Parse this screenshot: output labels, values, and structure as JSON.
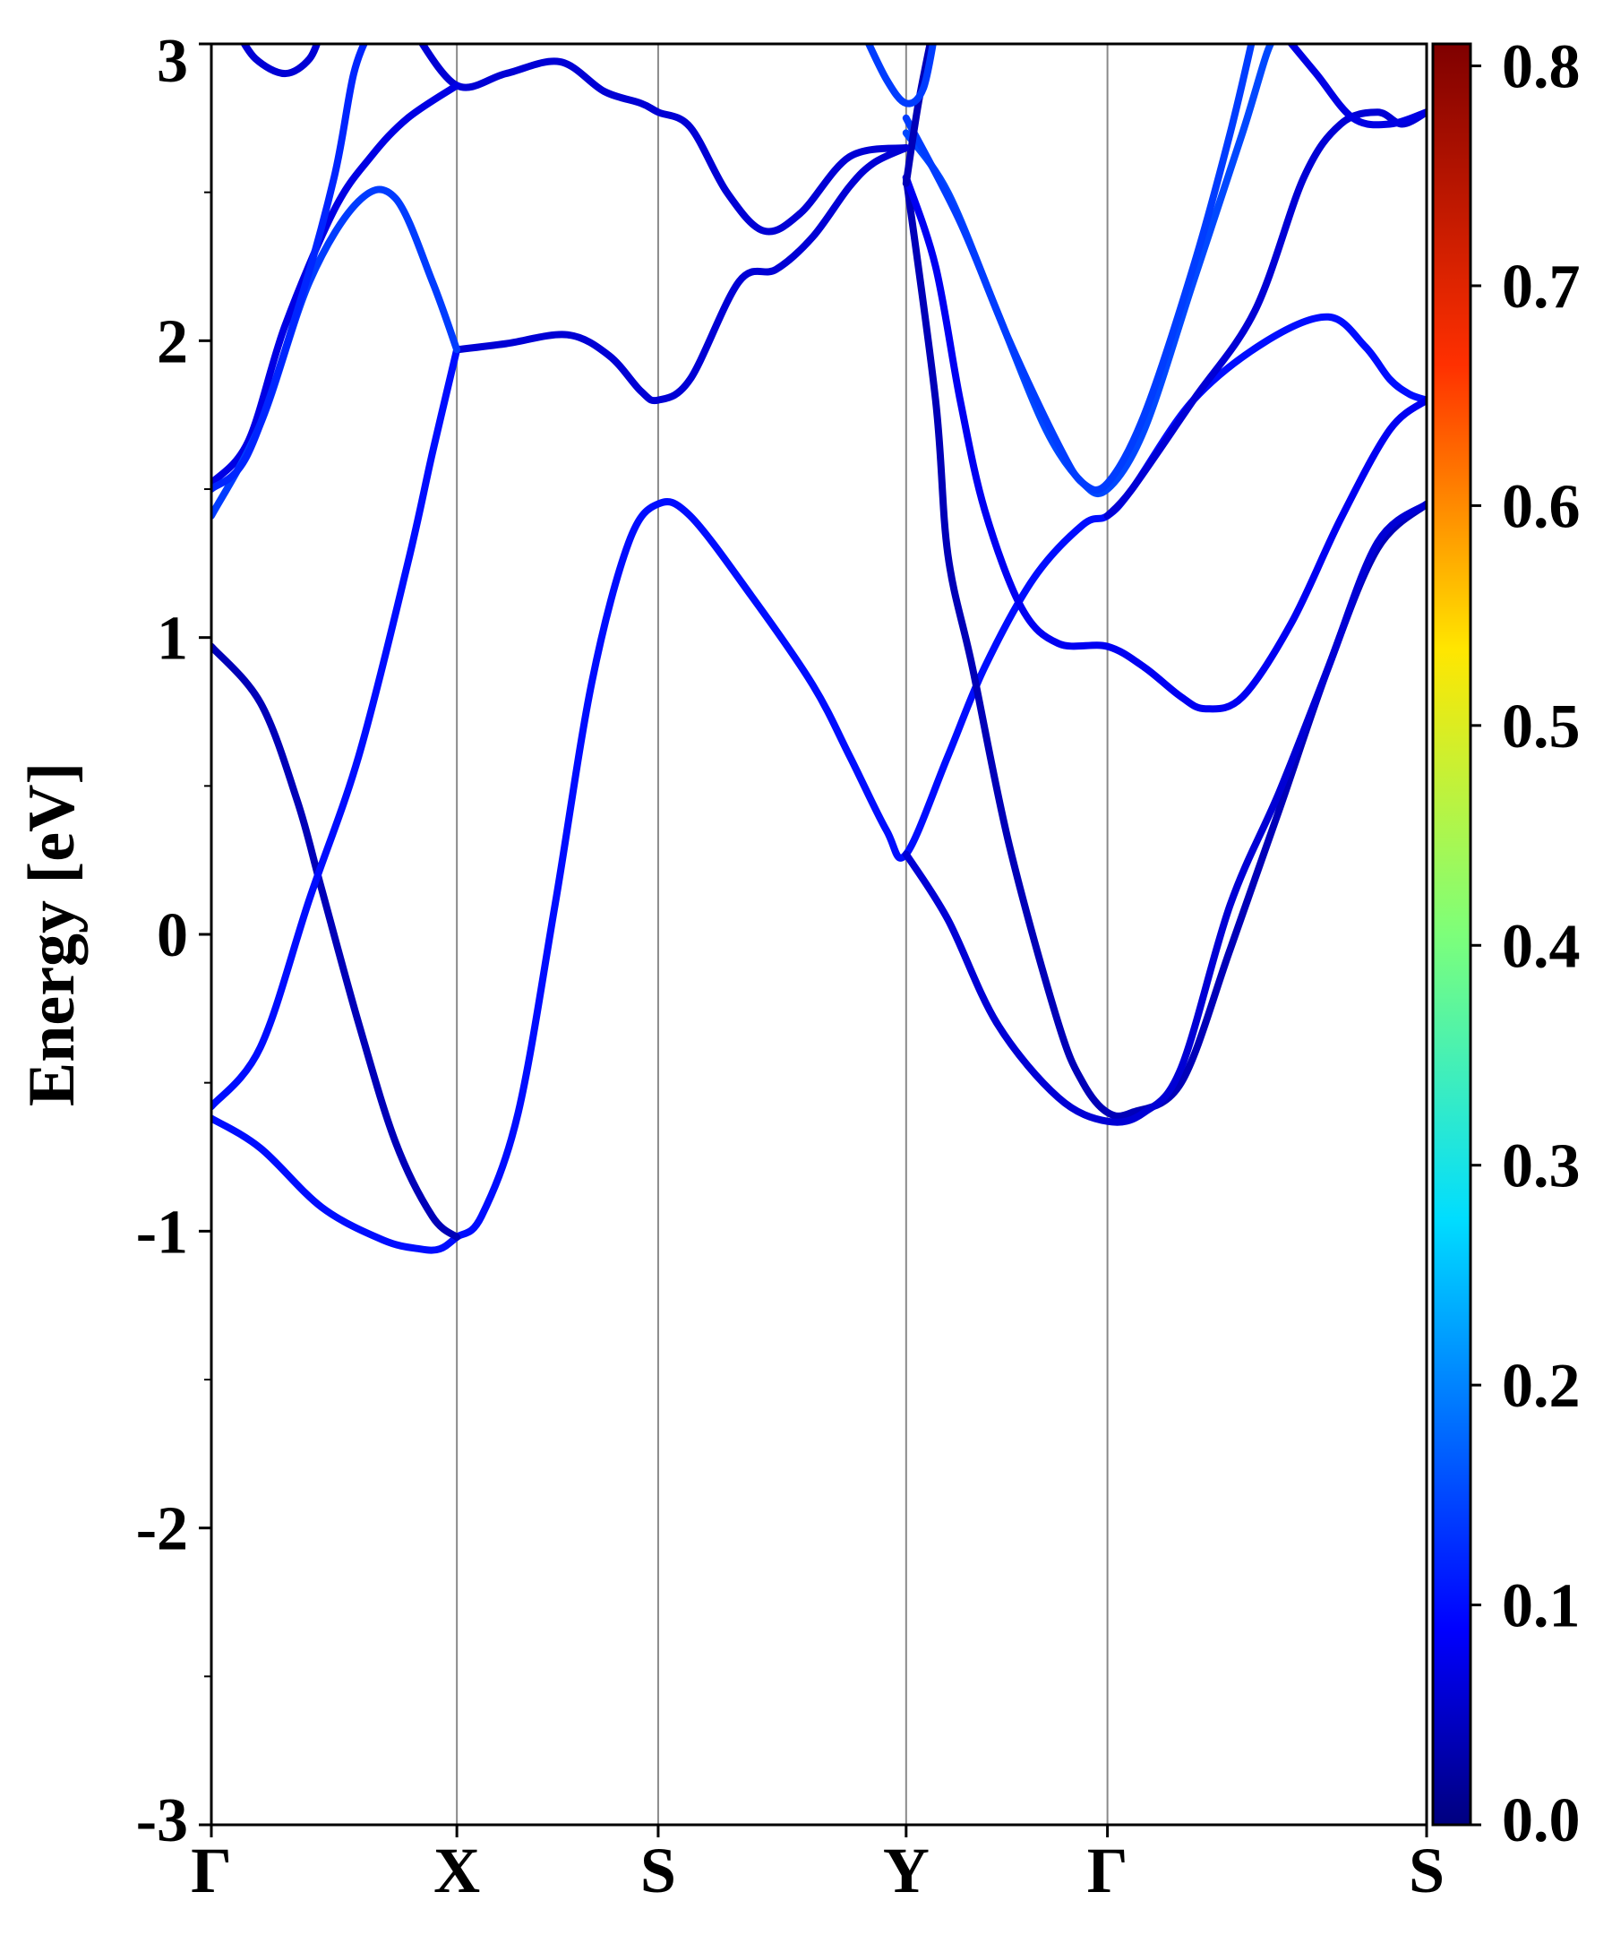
{
  "chart_data": {
    "type": "line",
    "title": "",
    "xlabel": "",
    "ylabel": "Energy [eV]",
    "ylim": [
      -3,
      3
    ],
    "yticks": [
      "3",
      "2",
      "1",
      "0",
      "-1",
      "-2",
      "-3"
    ],
    "ytick_values": [
      3,
      2,
      1,
      0,
      -1,
      -2,
      -3
    ],
    "ymin_tick_values": [
      2.5,
      1.5,
      0.5,
      -0.5,
      -1.5,
      -2.5
    ],
    "kpath": {
      "labels": [
        "Γ",
        "X",
        "S",
        "Y",
        "Γ",
        "S"
      ],
      "positions": [
        0,
        1.0,
        1.82,
        2.83,
        3.65,
        4.95
      ]
    },
    "grid": "vertical lines at high-symmetry points",
    "colorbar": {
      "cmap": "jet",
      "range": [
        0.0,
        0.81
      ],
      "ticks": [
        "0.0",
        "0.1",
        "0.2",
        "0.3",
        "0.4",
        "0.5",
        "0.6",
        "0.7",
        "0.8"
      ],
      "tick_values": [
        0.0,
        0.1,
        0.2,
        0.3,
        0.4,
        0.5,
        0.6,
        0.7,
        0.8
      ]
    },
    "series": [
      {
        "weight": 0.1,
        "points": [
          [
            0,
            -0.62
          ],
          [
            0.2,
            -0.72
          ],
          [
            0.45,
            -0.92
          ],
          [
            0.7,
            -1.03
          ],
          [
            0.85,
            -1.06
          ],
          [
            0.93,
            -1.06
          ],
          [
            1.0,
            -1.02
          ],
          [
            1.1,
            -0.95
          ],
          [
            1.25,
            -0.6
          ],
          [
            1.4,
            0.1
          ],
          [
            1.55,
            0.85
          ],
          [
            1.7,
            1.32
          ],
          [
            1.82,
            1.45
          ],
          [
            1.95,
            1.41
          ],
          [
            2.2,
            1.14
          ],
          [
            2.45,
            0.84
          ],
          [
            2.6,
            0.6
          ],
          [
            2.75,
            0.35
          ],
          [
            2.83,
            0.27
          ],
          [
            3.0,
            0.6
          ],
          [
            3.15,
            0.9
          ],
          [
            3.35,
            1.2
          ],
          [
            3.55,
            1.38
          ],
          [
            3.65,
            1.41
          ],
          [
            3.75,
            1.5
          ],
          [
            4.0,
            1.8
          ],
          [
            4.3,
            2.0
          ],
          [
            4.55,
            2.08
          ],
          [
            4.7,
            1.98
          ],
          [
            4.8,
            1.87
          ],
          [
            4.88,
            1.82
          ],
          [
            4.95,
            1.8
          ]
        ]
      },
      {
        "weight": 0.04,
        "points": [
          [
            0,
            0.97
          ],
          [
            0.2,
            0.78
          ],
          [
            0.35,
            0.45
          ],
          [
            0.45,
            0.15
          ],
          [
            0.6,
            -0.3
          ],
          [
            0.75,
            -0.7
          ],
          [
            0.9,
            -0.95
          ],
          [
            1.0,
            -1.02
          ]
        ]
      },
      {
        "weight": 0.1,
        "points": [
          [
            0,
            -0.58
          ],
          [
            0.2,
            -0.38
          ],
          [
            0.4,
            0.12
          ],
          [
            0.6,
            0.6
          ],
          [
            0.8,
            1.25
          ],
          [
            0.9,
            1.62
          ],
          [
            1.0,
            1.97
          ]
        ]
      },
      {
        "weight": 0.06,
        "points": [
          [
            1.0,
            1.97
          ],
          [
            1.2,
            1.99
          ],
          [
            1.45,
            2.02
          ],
          [
            1.62,
            1.95
          ],
          [
            1.75,
            1.83
          ],
          [
            1.82,
            1.8
          ],
          [
            1.95,
            1.87
          ],
          [
            2.15,
            2.2
          ],
          [
            2.3,
            2.24
          ],
          [
            2.45,
            2.35
          ],
          [
            2.6,
            2.52
          ],
          [
            2.7,
            2.6
          ],
          [
            2.83,
            2.65
          ]
        ]
      },
      {
        "weight": 0.04,
        "points": [
          [
            2.83,
            2.55
          ],
          [
            2.95,
            1.8
          ],
          [
            3.0,
            1.28
          ],
          [
            3.1,
            0.9
          ],
          [
            3.25,
            0.3
          ],
          [
            3.45,
            -0.3
          ],
          [
            3.55,
            -0.5
          ],
          [
            3.65,
            -0.6
          ],
          [
            3.75,
            -0.6
          ],
          [
            3.95,
            -0.5
          ],
          [
            4.15,
            -0.05
          ],
          [
            4.35,
            0.42
          ],
          [
            4.55,
            0.9
          ],
          [
            4.75,
            1.3
          ],
          [
            4.95,
            1.45
          ]
        ]
      },
      {
        "weight": 0.06,
        "points": [
          [
            2.83,
            0.27
          ],
          [
            3.0,
            0.05
          ],
          [
            3.2,
            -0.3
          ],
          [
            3.45,
            -0.55
          ],
          [
            3.65,
            -0.63
          ],
          [
            3.8,
            -0.6
          ],
          [
            3.95,
            -0.45
          ],
          [
            4.15,
            0.1
          ],
          [
            4.35,
            0.48
          ],
          [
            4.55,
            0.9
          ],
          [
            4.75,
            1.32
          ],
          [
            4.95,
            1.45
          ]
        ]
      },
      {
        "weight": 0.08,
        "points": [
          [
            2.83,
            2.55
          ],
          [
            2.95,
            2.25
          ],
          [
            3.05,
            1.8
          ],
          [
            3.15,
            1.43
          ],
          [
            3.3,
            1.1
          ],
          [
            3.45,
            0.98
          ],
          [
            3.65,
            0.97
          ],
          [
            3.8,
            0.9
          ],
          [
            3.95,
            0.8
          ],
          [
            4.05,
            0.76
          ],
          [
            4.2,
            0.8
          ],
          [
            4.4,
            1.05
          ],
          [
            4.6,
            1.4
          ],
          [
            4.8,
            1.7
          ],
          [
            4.95,
            1.8
          ]
        ]
      },
      {
        "weight": 0.15,
        "points": [
          [
            2.83,
            2.7
          ],
          [
            3.0,
            2.5
          ],
          [
            3.2,
            2.1
          ],
          [
            3.4,
            1.7
          ],
          [
            3.55,
            1.52
          ],
          [
            3.65,
            1.5
          ],
          [
            3.8,
            1.7
          ],
          [
            4.0,
            2.2
          ],
          [
            4.2,
            2.7
          ],
          [
            4.3,
            2.97
          ],
          [
            4.35,
            3.05
          ]
        ]
      },
      {
        "weight": 0.14,
        "points": [
          [
            2.83,
            2.75
          ],
          [
            3.05,
            2.4
          ],
          [
            3.25,
            2.0
          ],
          [
            3.45,
            1.65
          ],
          [
            3.55,
            1.52
          ],
          [
            3.65,
            1.52
          ],
          [
            3.8,
            1.75
          ],
          [
            4.0,
            2.25
          ],
          [
            4.15,
            2.7
          ],
          [
            4.25,
            3.05
          ]
        ]
      },
      {
        "weight": 0.06,
        "points": [
          [
            3.65,
            1.41
          ],
          [
            3.75,
            1.5
          ],
          [
            4.0,
            1.8
          ],
          [
            4.25,
            2.1
          ],
          [
            4.45,
            2.55
          ],
          [
            4.6,
            2.73
          ],
          [
            4.75,
            2.77
          ],
          [
            4.85,
            2.73
          ],
          [
            4.95,
            2.77
          ]
        ]
      },
      {
        "weight": 0.07,
        "points": [
          [
            4.35,
            3.05
          ],
          [
            4.5,
            2.9
          ],
          [
            4.65,
            2.75
          ],
          [
            4.8,
            2.73
          ],
          [
            4.95,
            2.77
          ]
        ]
      },
      {
        "weight": 0.04,
        "points": [
          [
            2.83,
            2.53
          ],
          [
            2.88,
            2.8
          ],
          [
            2.94,
            3.05
          ]
        ]
      },
      {
        "weight": 0.14,
        "points": [
          [
            2.65,
            3.05
          ],
          [
            2.75,
            2.88
          ],
          [
            2.83,
            2.8
          ],
          [
            2.9,
            2.85
          ],
          [
            2.95,
            3.05
          ]
        ]
      },
      {
        "weight": 0.06,
        "points": [
          [
            0.82,
            3.05
          ],
          [
            1.0,
            2.86
          ],
          [
            1.2,
            2.9
          ],
          [
            1.42,
            2.94
          ],
          [
            1.6,
            2.84
          ],
          [
            1.75,
            2.8
          ],
          [
            1.82,
            2.77
          ],
          [
            1.95,
            2.72
          ],
          [
            2.1,
            2.5
          ],
          [
            2.25,
            2.37
          ],
          [
            2.4,
            2.43
          ],
          [
            2.6,
            2.62
          ],
          [
            2.83,
            2.65
          ]
        ]
      },
      {
        "weight": 0.07,
        "points": [
          [
            0,
            1.52
          ],
          [
            0.15,
            1.66
          ],
          [
            0.3,
            2.05
          ],
          [
            0.5,
            2.44
          ],
          [
            0.65,
            2.62
          ],
          [
            0.8,
            2.75
          ],
          [
            1.0,
            2.86
          ]
        ]
      },
      {
        "weight": 0.14,
        "points": [
          [
            0,
            1.41
          ],
          [
            0.2,
            1.72
          ],
          [
            0.4,
            2.2
          ],
          [
            0.6,
            2.47
          ],
          [
            0.75,
            2.48
          ],
          [
            0.9,
            2.2
          ],
          [
            1.0,
            1.97
          ]
        ]
      },
      {
        "weight": 0.12,
        "points": [
          [
            0,
            1.5
          ],
          [
            0.15,
            1.62
          ],
          [
            0.35,
            2.1
          ],
          [
            0.5,
            2.55
          ],
          [
            0.58,
            2.9
          ],
          [
            0.65,
            3.05
          ]
        ]
      },
      {
        "weight": 0.06,
        "points": [
          [
            0.1,
            3.05
          ],
          [
            0.18,
            2.95
          ],
          [
            0.3,
            2.9
          ],
          [
            0.4,
            2.95
          ],
          [
            0.45,
            3.05
          ]
        ]
      }
    ]
  }
}
